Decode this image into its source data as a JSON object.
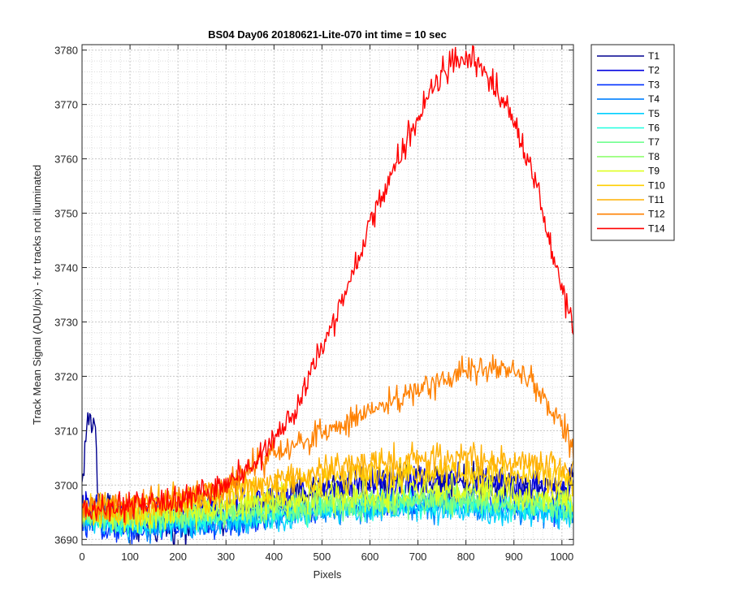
{
  "chart_data": {
    "type": "line",
    "title": "BS04 Day06 20180621-Lite-070 int time = 10 sec",
    "xlabel": "Pixels",
    "ylabel": "Track Mean Signal (ADU/pix) - for tracks not illuminated",
    "xlim": [
      0,
      1024
    ],
    "ylim": [
      3689,
      3781
    ],
    "xticks": [
      0,
      100,
      200,
      300,
      400,
      500,
      600,
      700,
      800,
      900,
      1000
    ],
    "yticks": [
      3690,
      3700,
      3710,
      3720,
      3730,
      3740,
      3750,
      3760,
      3770,
      3780
    ],
    "grid": "major and minor (dotted)",
    "legend_position": "outside-top-right",
    "series": [
      {
        "name": "T1",
        "color": "#00008F",
        "x": [
          0,
          10,
          15,
          22,
          28,
          32,
          100,
          200,
          300,
          400,
          500,
          600,
          700,
          800,
          900,
          1000,
          1024
        ],
        "values": [
          3700,
          3711,
          3712,
          3711,
          3712,
          3698,
          3692.5,
          3692.5,
          3694,
          3697,
          3699.5,
          3701,
          3701.5,
          3701,
          3700,
          3699,
          3702
        ]
      },
      {
        "name": "T2",
        "color": "#0000DF",
        "x": [
          0,
          100,
          200,
          300,
          400,
          500,
          600,
          700,
          800,
          900,
          1000,
          1024
        ],
        "values": [
          3696,
          3694,
          3695,
          3696,
          3697.5,
          3699,
          3700,
          3700.5,
          3700.5,
          3700,
          3699,
          3699
        ]
      },
      {
        "name": "T3",
        "color": "#0030FF",
        "x": [
          0,
          100,
          200,
          300,
          400,
          500,
          600,
          700,
          800,
          900,
          1000,
          1024
        ],
        "values": [
          3693,
          3692,
          3692.5,
          3693,
          3694.5,
          3695.5,
          3696.5,
          3697,
          3697,
          3696.5,
          3695.5,
          3695
        ]
      },
      {
        "name": "T4",
        "color": "#0080FF",
        "x": [
          0,
          100,
          200,
          300,
          400,
          500,
          600,
          700,
          800,
          900,
          1000,
          1024
        ],
        "values": [
          3693,
          3692,
          3692.5,
          3693,
          3694,
          3695,
          3695.5,
          3696,
          3696,
          3695.5,
          3695,
          3694.5
        ]
      },
      {
        "name": "T5",
        "color": "#00CFFF",
        "x": [
          0,
          100,
          200,
          300,
          400,
          500,
          600,
          700,
          800,
          900,
          1000,
          1024
        ],
        "values": [
          3693.5,
          3692.5,
          3693,
          3693.5,
          3694,
          3695,
          3695.5,
          3695.5,
          3695.5,
          3695,
          3694.5,
          3694
        ]
      },
      {
        "name": "T6",
        "color": "#20FFDF",
        "x": [
          0,
          100,
          200,
          300,
          400,
          500,
          600,
          700,
          800,
          900,
          1000,
          1024
        ],
        "values": [
          3694,
          3693,
          3693.5,
          3694,
          3694.5,
          3695.5,
          3696,
          3696.5,
          3696.5,
          3696,
          3695.5,
          3695
        ]
      },
      {
        "name": "T7",
        "color": "#70FF8F",
        "x": [
          0,
          100,
          200,
          300,
          400,
          500,
          600,
          700,
          800,
          900,
          1000,
          1024
        ],
        "values": [
          3694,
          3693.5,
          3694,
          3694.5,
          3695.5,
          3696,
          3696.5,
          3697,
          3697,
          3696.5,
          3696,
          3695.5
        ]
      },
      {
        "name": "T8",
        "color": "#8FFF70",
        "x": [
          0,
          100,
          200,
          300,
          400,
          500,
          600,
          700,
          800,
          900,
          1000,
          1024
        ],
        "values": [
          3694.5,
          3694,
          3694.5,
          3695,
          3696,
          3696.5,
          3697,
          3697.5,
          3697.5,
          3697,
          3696.5,
          3696
        ]
      },
      {
        "name": "T9",
        "color": "#DFFF20",
        "x": [
          0,
          100,
          200,
          300,
          400,
          500,
          600,
          700,
          800,
          900,
          1000,
          1024
        ],
        "values": [
          3695,
          3694.5,
          3695,
          3696,
          3697,
          3698,
          3698.5,
          3699,
          3699,
          3698.5,
          3698,
          3697.5
        ]
      },
      {
        "name": "T10",
        "color": "#FFCF00",
        "x": [
          0,
          100,
          200,
          300,
          400,
          500,
          600,
          700,
          800,
          900,
          1000,
          1024
        ],
        "values": [
          3695.5,
          3695.5,
          3696.5,
          3698,
          3699.5,
          3701,
          3702,
          3702.5,
          3702.5,
          3702,
          3701,
          3700
        ]
      },
      {
        "name": "T11",
        "color": "#FFB000",
        "x": [
          0,
          100,
          200,
          300,
          400,
          500,
          600,
          700,
          800,
          900,
          1000,
          1024
        ],
        "values": [
          3696,
          3696.5,
          3697.5,
          3699,
          3701,
          3702.5,
          3704,
          3705,
          3705,
          3704.5,
          3703.5,
          3702.5
        ]
      },
      {
        "name": "T12",
        "color": "#FF8000",
        "x": [
          0,
          100,
          200,
          300,
          350,
          400,
          500,
          600,
          700,
          800,
          850,
          900,
          950,
          1000,
          1024
        ],
        "values": [
          3695.5,
          3696,
          3697.5,
          3700,
          3703,
          3705.5,
          3709.5,
          3713.5,
          3717.5,
          3721,
          3722,
          3721,
          3718,
          3711,
          3706.5
        ]
      },
      {
        "name": "T14",
        "color": "#FF0000",
        "x": [
          0,
          50,
          100,
          150,
          200,
          250,
          300,
          350,
          400,
          450,
          500,
          550,
          600,
          650,
          700,
          750,
          780,
          800,
          830,
          850,
          900,
          950,
          980,
          1000,
          1024
        ],
        "values": [
          3695.5,
          3695.5,
          3696,
          3696.5,
          3697.5,
          3698.5,
          3700,
          3703,
          3708,
          3715,
          3725,
          3736,
          3748,
          3758,
          3768,
          3776,
          3778,
          3778,
          3777,
          3775,
          3767,
          3754,
          3743,
          3737,
          3728
        ]
      }
    ]
  }
}
